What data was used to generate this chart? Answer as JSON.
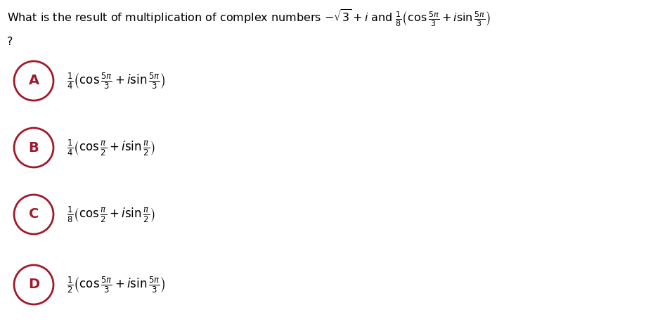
{
  "title_line1": "What is the result of multiplication of complex numbers $-\\sqrt{3}+i$ and $\\frac{1}{8}\\left(\\cos\\frac{5\\pi}{3}+i\\sin\\frac{5\\pi}{3}\\right)$",
  "title_line2": "?",
  "options": [
    {
      "letter": "A",
      "formula": "$\\frac{1}{4}\\left(\\cos\\frac{5\\pi}{3}+i\\sin\\frac{5\\pi}{3}\\right)$"
    },
    {
      "letter": "B",
      "formula": "$\\frac{1}{4}\\left(\\cos\\frac{\\pi}{2}+i\\sin\\frac{\\pi}{2}\\right)$"
    },
    {
      "letter": "C",
      "formula": "$\\frac{1}{8}\\left(\\cos\\frac{\\pi}{2}+i\\sin\\frac{\\pi}{2}\\right)$"
    },
    {
      "letter": "D",
      "formula": "$\\frac{1}{2}\\left(\\cos\\frac{5\\pi}{3}+i\\sin\\frac{5\\pi}{3}\\right)$"
    }
  ],
  "circle_color": "#a0192a",
  "text_color": "#000000",
  "bg_color": "#ffffff",
  "title_fontsize": 11.5,
  "option_fontsize": 12,
  "letter_fontsize": 14,
  "fig_width": 9.19,
  "fig_height": 4.68,
  "dpi": 100
}
